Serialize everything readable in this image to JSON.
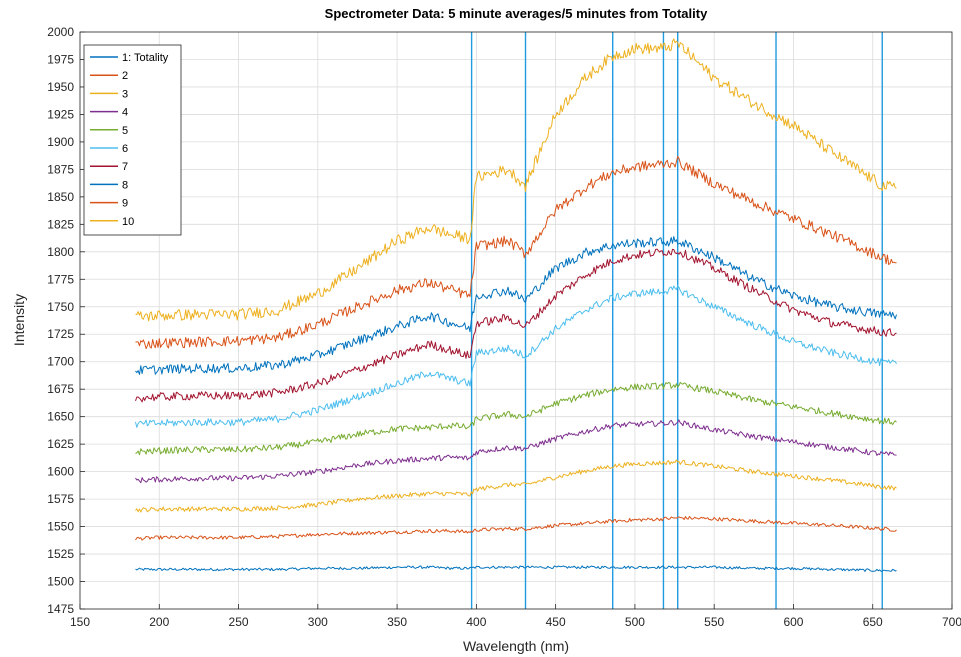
{
  "chart_data": {
    "type": "line",
    "title": "Spectrometer Data: 5 minute averages/5 minutes from Totality",
    "xlabel": "Wavelength (nm)",
    "ylabel": "Intensity",
    "xlim": [
      150,
      700
    ],
    "ylim": [
      1475,
      2000
    ],
    "xticks": [
      150,
      200,
      250,
      300,
      350,
      400,
      450,
      500,
      550,
      600,
      650,
      700
    ],
    "xtick_labels": [
      "150",
      "200",
      "250",
      "300",
      "350",
      "400",
      "450",
      "500",
      "550",
      "600",
      "650",
      "700"
    ],
    "yticks": [
      1475,
      1500,
      1525,
      1550,
      1575,
      1600,
      1625,
      1650,
      1675,
      1700,
      1725,
      1750,
      1775,
      1800,
      1825,
      1850,
      1875,
      1900,
      1925,
      1950,
      1975,
      2000
    ],
    "ytick_labels": [
      "1475",
      "1500",
      "1525",
      "1550",
      "1575",
      "1600",
      "1625",
      "1650",
      "1675",
      "1700",
      "1725",
      "1750",
      "1775",
      "1800",
      "1825",
      "1850",
      "1875",
      "1900",
      "1925",
      "1950",
      "1975",
      "2000"
    ],
    "grid": true,
    "legend_position": "top-left",
    "vertical_lines": [
      397,
      431,
      486,
      518,
      527,
      589,
      656
    ],
    "vertical_line_color": "#1f9be0",
    "x": [
      185,
      200,
      225,
      250,
      275,
      300,
      325,
      350,
      370,
      385,
      396,
      400,
      420,
      431,
      450,
      470,
      486,
      500,
      518,
      527,
      550,
      575,
      600,
      625,
      656,
      665
    ],
    "series": [
      {
        "name": "1: Totality",
        "color": "#0072BD",
        "values": [
          1511,
          1511,
          1511,
          1511,
          1511,
          1512,
          1512,
          1513,
          1513,
          1512,
          1512,
          1513,
          1513,
          1513,
          1513,
          1513,
          1513,
          1513,
          1513,
          1513,
          1513,
          1512,
          1512,
          1511,
          1510,
          1510
        ]
      },
      {
        "name": "2",
        "color": "#D95319",
        "values": [
          1539,
          1540,
          1540,
          1540,
          1541,
          1543,
          1544,
          1545,
          1546,
          1546,
          1545,
          1547,
          1548,
          1548,
          1551,
          1553,
          1555,
          1556,
          1557,
          1558,
          1557,
          1555,
          1553,
          1551,
          1548,
          1547
        ]
      },
      {
        "name": "3",
        "color": "#EDB120",
        "values": [
          1565,
          1566,
          1566,
          1566,
          1567,
          1570,
          1575,
          1578,
          1580,
          1580,
          1579,
          1584,
          1588,
          1588,
          1595,
          1601,
          1605,
          1607,
          1608,
          1609,
          1605,
          1600,
          1596,
          1592,
          1586,
          1585
        ]
      },
      {
        "name": "4",
        "color": "#7E2F8E",
        "values": [
          1592,
          1593,
          1594,
          1594,
          1596,
          1600,
          1606,
          1610,
          1612,
          1613,
          1612,
          1618,
          1622,
          1621,
          1630,
          1637,
          1642,
          1643,
          1644,
          1645,
          1638,
          1632,
          1627,
          1622,
          1616,
          1615
        ]
      },
      {
        "name": "5",
        "color": "#77AC30",
        "values": [
          1618,
          1619,
          1620,
          1620,
          1622,
          1627,
          1634,
          1639,
          1640,
          1642,
          1640,
          1648,
          1652,
          1650,
          1662,
          1670,
          1675,
          1677,
          1678,
          1679,
          1673,
          1665,
          1659,
          1653,
          1646,
          1645
        ]
      },
      {
        "name": "6",
        "color": "#4DBEEE",
        "values": [
          1643,
          1644,
          1645,
          1645,
          1648,
          1656,
          1668,
          1680,
          1690,
          1684,
          1680,
          1708,
          1712,
          1705,
          1730,
          1748,
          1758,
          1762,
          1764,
          1766,
          1750,
          1733,
          1718,
          1708,
          1699,
          1698
        ]
      },
      {
        "name": "7",
        "color": "#A2142F",
        "values": [
          1667,
          1668,
          1669,
          1669,
          1672,
          1680,
          1693,
          1706,
          1716,
          1710,
          1705,
          1735,
          1740,
          1732,
          1760,
          1780,
          1792,
          1797,
          1800,
          1801,
          1785,
          1765,
          1747,
          1735,
          1727,
          1726
        ]
      },
      {
        "name": "8",
        "color": "#0072BD",
        "values": [
          1692,
          1693,
          1694,
          1694,
          1697,
          1706,
          1719,
          1732,
          1742,
          1735,
          1730,
          1760,
          1765,
          1756,
          1785,
          1800,
          1806,
          1808,
          1809,
          1810,
          1795,
          1775,
          1760,
          1750,
          1743,
          1743
        ]
      },
      {
        "name": "9",
        "color": "#D95319",
        "values": [
          1716,
          1717,
          1718,
          1719,
          1722,
          1734,
          1750,
          1765,
          1772,
          1765,
          1760,
          1805,
          1810,
          1798,
          1838,
          1860,
          1872,
          1877,
          1880,
          1882,
          1862,
          1845,
          1830,
          1815,
          1795,
          1790
        ]
      },
      {
        "name": "10",
        "color": "#EDB120",
        "values": [
          1741,
          1742,
          1743,
          1743,
          1747,
          1762,
          1785,
          1810,
          1822,
          1815,
          1812,
          1868,
          1875,
          1860,
          1925,
          1960,
          1978,
          1985,
          1985,
          1990,
          1958,
          1935,
          1915,
          1890,
          1860,
          1858
        ]
      }
    ]
  }
}
